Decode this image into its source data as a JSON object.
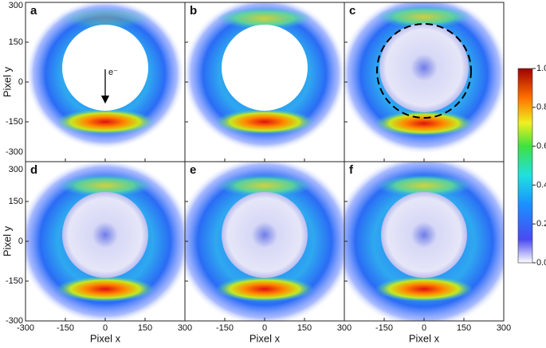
{
  "chart_data": {
    "type": "image",
    "panels": [
      {
        "label": "a"
      },
      {
        "label": "b"
      },
      {
        "label": "c"
      },
      {
        "label": "d"
      },
      {
        "label": "e"
      },
      {
        "label": "f"
      }
    ],
    "annotation": "e⁻",
    "x_label": "Pixel x",
    "y_label": "Pixel y",
    "xlim": [
      -300,
      300
    ],
    "xticks": [
      -300,
      -150,
      0,
      150,
      300
    ],
    "ylim": [
      -300,
      300
    ],
    "yticks": [
      -300,
      -150,
      0,
      150,
      300
    ],
    "colorbar": {
      "clim": [
        0,
        1
      ],
      "ticks": [
        {
          "value": 0,
          "label": "0.0"
        },
        0.2,
        0.4,
        0.6,
        0.8,
        {
          "value": 1,
          "label": "1.0"
        }
      ]
    }
  }
}
